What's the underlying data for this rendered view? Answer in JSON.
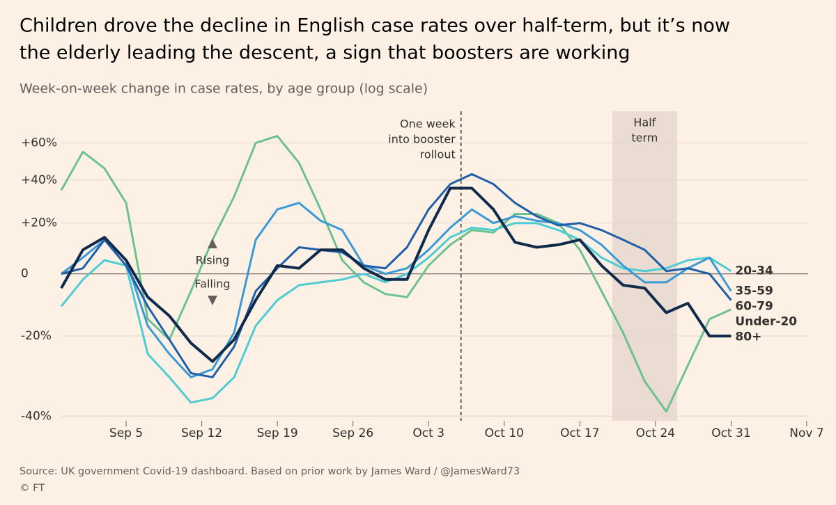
{
  "chart_data": {
    "type": "line",
    "title": [
      "Children drove the decline in English case rates over half-term, but it’s now",
      "the elderly leading the descent, a sign that boosters are working"
    ],
    "subtitle": "Week-on-week change in case rates, by age group (log scale)",
    "log_scale": true,
    "grid": true,
    "x": [
      "Aug 30",
      "Sep 1",
      "Sep 3",
      "Sep 5",
      "Sep 7",
      "Sep 9",
      "Sep 11",
      "Sep 13",
      "Sep 15",
      "Sep 17",
      "Sep 19",
      "Sep 21",
      "Sep 23",
      "Sep 25",
      "Sep 27",
      "Sep 29",
      "Oct 1",
      "Oct 3",
      "Oct 5",
      "Oct 7",
      "Oct 9",
      "Oct 11",
      "Oct 13",
      "Oct 15",
      "Oct 17",
      "Oct 19",
      "Oct 21",
      "Oct 23",
      "Oct 25",
      "Oct 27",
      "Oct 29",
      "Oct 31"
    ],
    "xlim": [
      "Aug 30",
      "Nov 9"
    ],
    "xticks": [
      "Sep 5",
      "Sep 12",
      "Sep 19",
      "Sep 26",
      "Oct 3",
      "Oct 10",
      "Oct 17",
      "Oct 24",
      "Oct 31",
      "Nov 7"
    ],
    "ylim": [
      -41,
      77
    ],
    "yticks": [
      {
        "value": 60,
        "label": "+60%"
      },
      {
        "value": 40,
        "label": "+40%"
      },
      {
        "value": 20,
        "label": "+20%"
      },
      0,
      {
        "value": -20,
        "label": "-20%"
      },
      {
        "value": -40,
        "label": "-40%"
      }
    ],
    "series": [
      {
        "name": "Under-20",
        "color": "#6cc28e",
        "values": [
          35,
          55,
          46,
          29,
          -15,
          -21,
          -6,
          13,
          32,
          60,
          64,
          49,
          26,
          5,
          -3,
          -7,
          -8,
          3,
          11,
          17,
          16,
          24,
          24,
          20,
          9,
          -6,
          -19,
          -32,
          -39,
          -28,
          -15,
          -12
        ]
      },
      {
        "name": "20-34",
        "color": "#4fcbd3",
        "values": [
          -11,
          -2,
          5,
          3,
          -25,
          -31,
          -37,
          -36,
          -31,
          -17,
          -9,
          -4,
          -3,
          -2,
          0,
          -3,
          0,
          6,
          14,
          18,
          17,
          20,
          20,
          17,
          13,
          6,
          2,
          1,
          2,
          5,
          6,
          1
        ]
      },
      {
        "name": "35-59",
        "color": "#3a9ad6",
        "values": [
          0,
          6,
          13,
          5,
          -17,
          -25,
          -31,
          -29,
          -19,
          13,
          26,
          29,
          21,
          17,
          3,
          0,
          2,
          9,
          18,
          26,
          20,
          23,
          21,
          20,
          17,
          11,
          3,
          -3,
          -3,
          2,
          6,
          -6
        ]
      },
      {
        "name": "60-79",
        "color": "#1e5fa8",
        "values": [
          0,
          2,
          13,
          3,
          -11,
          -21,
          -30,
          -31,
          -23,
          -6,
          2,
          10,
          9,
          8,
          3,
          2,
          10,
          26,
          38,
          43,
          38,
          29,
          23,
          19,
          20,
          17,
          13,
          9,
          1,
          2,
          0,
          -9
        ]
      },
      {
        "name": "80+",
        "color": "#0f2a4a",
        "values": [
          -5,
          9,
          14,
          5,
          -8,
          -14,
          -22,
          -27,
          -21,
          -9,
          3,
          2,
          9,
          9,
          2,
          -2,
          -2,
          17,
          36,
          36,
          26,
          12,
          10,
          11,
          13,
          3,
          -4,
          -5,
          -13,
          -10,
          -20,
          -20
        ]
      }
    ],
    "annotations": {
      "booster": {
        "x": "Oct 6",
        "text": [
          "One week",
          "into booster",
          "rollout"
        ]
      },
      "half_term": {
        "x": [
          "Oct 20",
          "Oct 26"
        ],
        "text": [
          "Half",
          "term"
        ]
      },
      "rising": "Rising",
      "falling": "Falling"
    },
    "source": "Source: UK government Covid-19 dashboard. Based on prior work by James Ward / @JamesWard73",
    "credit": "© FT"
  }
}
